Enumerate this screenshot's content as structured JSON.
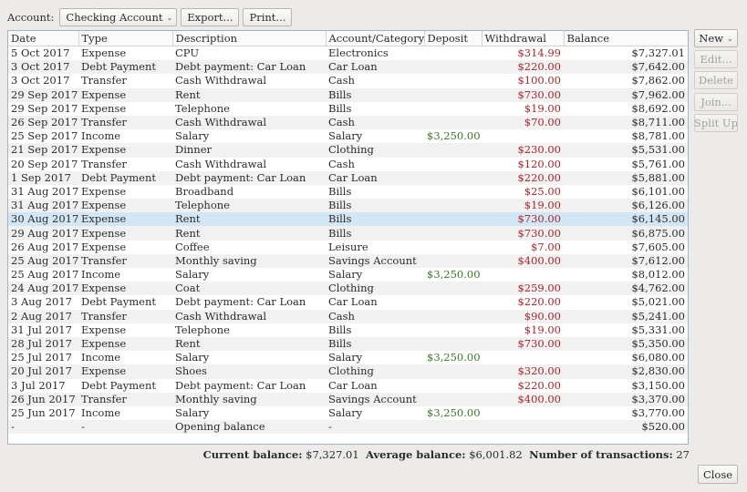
{
  "toolbar": {
    "account_label": "Account:",
    "account_value": "Checking Account",
    "export_label": "Export...",
    "print_label": "Print..."
  },
  "table": {
    "columns": [
      "Date",
      "Type",
      "Description",
      "Account/Category",
      "Deposit",
      "Withdrawal",
      "Balance"
    ],
    "rows": [
      {
        "date": "5 Oct 2017",
        "type": "Expense",
        "description": "CPU",
        "category": "Electronics",
        "deposit": "",
        "withdrawal": "$314.99",
        "balance": "$7,327.01"
      },
      {
        "date": "3 Oct 2017",
        "type": "Debt Payment",
        "description": "Debt payment: Car Loan",
        "category": "Car Loan",
        "deposit": "",
        "withdrawal": "$220.00",
        "balance": "$7,642.00"
      },
      {
        "date": "3 Oct 2017",
        "type": "Transfer",
        "description": "Cash Withdrawal",
        "category": "Cash",
        "deposit": "",
        "withdrawal": "$100.00",
        "balance": "$7,862.00"
      },
      {
        "date": "29 Sep 2017",
        "type": "Expense",
        "description": "Rent",
        "category": "Bills",
        "deposit": "",
        "withdrawal": "$730.00",
        "balance": "$7,962.00"
      },
      {
        "date": "29 Sep 2017",
        "type": "Expense",
        "description": "Telephone",
        "category": "Bills",
        "deposit": "",
        "withdrawal": "$19.00",
        "balance": "$8,692.00"
      },
      {
        "date": "26 Sep 2017",
        "type": "Transfer",
        "description": "Cash Withdrawal",
        "category": "Cash",
        "deposit": "",
        "withdrawal": "$70.00",
        "balance": "$8,711.00"
      },
      {
        "date": "25 Sep 2017",
        "type": "Income",
        "description": "Salary",
        "category": "Salary",
        "deposit": "$3,250.00",
        "withdrawal": "",
        "balance": "$8,781.00"
      },
      {
        "date": "21 Sep 2017",
        "type": "Expense",
        "description": "Dinner",
        "category": "Clothing",
        "deposit": "",
        "withdrawal": "$230.00",
        "balance": "$5,531.00"
      },
      {
        "date": "20 Sep 2017",
        "type": "Transfer",
        "description": "Cash Withdrawal",
        "category": "Cash",
        "deposit": "",
        "withdrawal": "$120.00",
        "balance": "$5,761.00"
      },
      {
        "date": "1 Sep 2017",
        "type": "Debt Payment",
        "description": "Debt payment: Car Loan",
        "category": "Car Loan",
        "deposit": "",
        "withdrawal": "$220.00",
        "balance": "$5,881.00"
      },
      {
        "date": "31 Aug 2017",
        "type": "Expense",
        "description": "Broadband",
        "category": "Bills",
        "deposit": "",
        "withdrawal": "$25.00",
        "balance": "$6,101.00"
      },
      {
        "date": "31 Aug 2017",
        "type": "Expense",
        "description": "Telephone",
        "category": "Bills",
        "deposit": "",
        "withdrawal": "$19.00",
        "balance": "$6,126.00"
      },
      {
        "date": "30 Aug 2017",
        "type": "Expense",
        "description": "Rent",
        "category": "Bills",
        "deposit": "",
        "withdrawal": "$730.00",
        "balance": "$6,145.00",
        "selected": true
      },
      {
        "date": "29 Aug 2017",
        "type": "Expense",
        "description": "Rent",
        "category": "Bills",
        "deposit": "",
        "withdrawal": "$730.00",
        "balance": "$6,875.00"
      },
      {
        "date": "26 Aug 2017",
        "type": "Expense",
        "description": "Coffee",
        "category": "Leisure",
        "deposit": "",
        "withdrawal": "$7.00",
        "balance": "$7,605.00"
      },
      {
        "date": "25 Aug 2017",
        "type": "Transfer",
        "description": "Monthly saving",
        "category": "Savings Account",
        "deposit": "",
        "withdrawal": "$400.00",
        "balance": "$7,612.00"
      },
      {
        "date": "25 Aug 2017",
        "type": "Income",
        "description": "Salary",
        "category": "Salary",
        "deposit": "$3,250.00",
        "withdrawal": "",
        "balance": "$8,012.00"
      },
      {
        "date": "24 Aug 2017",
        "type": "Expense",
        "description": "Coat",
        "category": "Clothing",
        "deposit": "",
        "withdrawal": "$259.00",
        "balance": "$4,762.00"
      },
      {
        "date": "3 Aug 2017",
        "type": "Debt Payment",
        "description": "Debt payment: Car Loan",
        "category": "Car Loan",
        "deposit": "",
        "withdrawal": "$220.00",
        "balance": "$5,021.00"
      },
      {
        "date": "2 Aug 2017",
        "type": "Transfer",
        "description": "Cash Withdrawal",
        "category": "Cash",
        "deposit": "",
        "withdrawal": "$90.00",
        "balance": "$5,241.00"
      },
      {
        "date": "31 Jul 2017",
        "type": "Expense",
        "description": "Telephone",
        "category": "Bills",
        "deposit": "",
        "withdrawal": "$19.00",
        "balance": "$5,331.00"
      },
      {
        "date": "28 Jul 2017",
        "type": "Expense",
        "description": "Rent",
        "category": "Bills",
        "deposit": "",
        "withdrawal": "$730.00",
        "balance": "$5,350.00"
      },
      {
        "date": "25 Jul 2017",
        "type": "Income",
        "description": "Salary",
        "category": "Salary",
        "deposit": "$3,250.00",
        "withdrawal": "",
        "balance": "$6,080.00"
      },
      {
        "date": "20 Jul 2017",
        "type": "Expense",
        "description": "Shoes",
        "category": "Clothing",
        "deposit": "",
        "withdrawal": "$320.00",
        "balance": "$2,830.00"
      },
      {
        "date": "3 Jul 2017",
        "type": "Debt Payment",
        "description": "Debt payment: Car Loan",
        "category": "Car Loan",
        "deposit": "",
        "withdrawal": "$220.00",
        "balance": "$3,150.00"
      },
      {
        "date": "26 Jun 2017",
        "type": "Transfer",
        "description": "Monthly saving",
        "category": "Savings Account",
        "deposit": "",
        "withdrawal": "$400.00",
        "balance": "$3,370.00"
      },
      {
        "date": "25 Jun 2017",
        "type": "Income",
        "description": "Salary",
        "category": "Salary",
        "deposit": "$3,250.00",
        "withdrawal": "",
        "balance": "$3,770.00"
      },
      {
        "date": "-",
        "type": "-",
        "description": "Opening balance",
        "category": "-",
        "deposit": "",
        "withdrawal": "",
        "balance": "$520.00"
      }
    ]
  },
  "actions": {
    "new_label": "New",
    "edit_label": "Edit...",
    "delete_label": "Delete",
    "join_label": "Join...",
    "split_label": "Split Up"
  },
  "status": {
    "current_label": "Current balance:",
    "current_value": "$7,327.01",
    "average_label": "Average balance:",
    "average_value": "$6,001.82",
    "count_label": "Number of transactions:",
    "count_value": "27"
  },
  "close_label": "Close",
  "colors": {
    "deposit": "#3d7a2e",
    "withdrawal": "#a6262d",
    "selection": "#d2e6f6"
  }
}
